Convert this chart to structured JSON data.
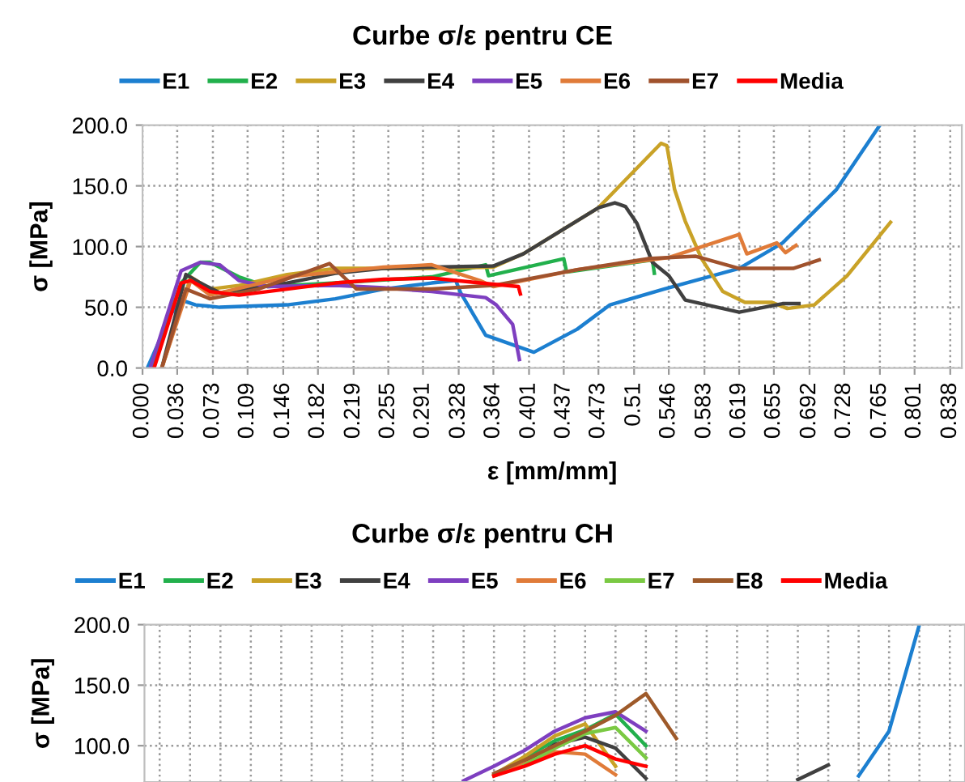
{
  "chart_data": [
    {
      "type": "line",
      "title": "Curbe σ/ε pentru CE",
      "xlabel": "ε [mm/mm]",
      "ylabel": "σ [MPa]",
      "legend": "top",
      "grid": true,
      "xlim": [
        0,
        0.85
      ],
      "ylim": [
        0,
        200
      ],
      "xticks": [
        {
          "value": 0,
          "label": "0.000"
        },
        0.036,
        0.073,
        0.109,
        0.146,
        0.182,
        0.219,
        0.255,
        0.291,
        0.328,
        0.364,
        0.401,
        0.437,
        0.473,
        0.51,
        0.546,
        0.583,
        0.619,
        0.655,
        0.692,
        0.728,
        0.765,
        0.801,
        0.838
      ],
      "yticks": [
        {
          "value": 0,
          "label": "0.0"
        },
        {
          "value": 50,
          "label": "50.0"
        },
        {
          "value": 100,
          "label": "100.0"
        },
        {
          "value": 150,
          "label": "150.0"
        },
        {
          "value": 200,
          "label": "200.0"
        }
      ],
      "series": [
        {
          "name": "E1",
          "color": "#1c7fd0",
          "x": [
            0.005,
            0.03,
            0.04,
            0.055,
            0.08,
            0.15,
            0.2,
            0.25,
            0.3,
            0.325,
            0.33,
            0.356,
            0.406,
            0.451,
            0.485,
            0.541,
            0.619,
            0.664,
            0.72,
            0.765
          ],
          "values": [
            0,
            45,
            56,
            52,
            50,
            52,
            57,
            65,
            70,
            72,
            62,
            27,
            13,
            32,
            52,
            65,
            82,
            103,
            147,
            200
          ]
        },
        {
          "name": "E2",
          "color": "#22b04c",
          "x": [
            0.01,
            0.04,
            0.06,
            0.07,
            0.1,
            0.13,
            0.2,
            0.3,
            0.356,
            0.359,
            0.437,
            0.44,
            0.529,
            0.531
          ],
          "values": [
            0,
            70,
            87,
            87,
            75,
            67,
            70,
            75,
            85,
            76,
            90,
            79,
            89,
            78
          ]
        },
        {
          "name": "E3",
          "color": "#c9a227",
          "x": [
            0.02,
            0.05,
            0.07,
            0.1,
            0.15,
            0.2,
            0.3,
            0.364,
            0.395,
            0.473,
            0.538,
            0.544,
            0.552,
            0.563,
            0.58,
            0.602,
            0.625,
            0.653,
            0.669,
            0.697,
            0.731,
            0.776
          ],
          "values": [
            0,
            75,
            65,
            68,
            77,
            82,
            82,
            83,
            94,
            132,
            185,
            183,
            147,
            121,
            90,
            63,
            54,
            54,
            49,
            52,
            76,
            120
          ]
        },
        {
          "name": "E4",
          "color": "#404040",
          "x": [
            0.02,
            0.045,
            0.06,
            0.08,
            0.15,
            0.2,
            0.25,
            0.3,
            0.364,
            0.395,
            0.473,
            0.49,
            0.501,
            0.513,
            0.529,
            0.546,
            0.563,
            0.619,
            0.664,
            0.681
          ],
          "values": [
            0,
            77,
            70,
            62,
            70,
            78,
            82,
            83,
            84,
            94,
            132,
            136,
            133,
            119,
            87,
            76,
            56,
            46,
            53,
            53
          ]
        },
        {
          "name": "E5",
          "color": "#7e3fc0",
          "x": [
            0.008,
            0.04,
            0.06,
            0.08,
            0.1,
            0.13,
            0.2,
            0.25,
            0.3,
            0.356,
            0.367,
            0.384,
            0.391
          ],
          "values": [
            0,
            80,
            87,
            85,
            72,
            67,
            68,
            66,
            63,
            58,
            52,
            36,
            7
          ]
        },
        {
          "name": "E6",
          "color": "#e07b39",
          "x": [
            0.02,
            0.05,
            0.07,
            0.15,
            0.25,
            0.3,
            0.35,
            0.364,
            0.451,
            0.546,
            0.619,
            0.627,
            0.658,
            0.667,
            0.678
          ],
          "values": [
            0,
            72,
            60,
            75,
            83,
            85,
            72,
            67,
            81,
            91,
            110,
            94,
            103,
            95,
            101
          ]
        },
        {
          "name": "E7",
          "color": "#a0522d",
          "x": [
            0.02,
            0.045,
            0.07,
            0.12,
            0.18,
            0.194,
            0.222,
            0.3,
            0.364,
            0.451,
            0.524,
            0.574,
            0.619,
            0.675,
            0.702
          ],
          "values": [
            0,
            65,
            57,
            65,
            82,
            86,
            65,
            65,
            68,
            81,
            90,
            92,
            82,
            82,
            89
          ]
        },
        {
          "name": "Media",
          "color": "#ff0000",
          "x": [
            0.012,
            0.04,
            0.05,
            0.07,
            0.1,
            0.15,
            0.2,
            0.25,
            0.3,
            0.35,
            0.39,
            0.392
          ],
          "values": [
            0,
            70,
            72,
            63,
            60,
            65,
            70,
            73,
            74,
            70,
            67,
            61
          ]
        }
      ]
    },
    {
      "type": "line",
      "title": "Curbe σ/ε pentru CH",
      "ylabel": "σ [MPa]",
      "legend": "top",
      "grid": true,
      "tick_labels": "y",
      "categories": [
        null,
        null,
        null,
        null,
        null,
        null,
        null,
        null,
        null,
        null,
        null,
        null,
        null,
        null,
        null,
        null,
        null,
        null,
        null,
        null,
        null,
        null,
        null,
        null,
        null,
        null,
        null
      ],
      "ylim": [
        70,
        200
      ],
      "yticks": [
        {
          "value": 100,
          "label": "100.0"
        },
        {
          "value": 150,
          "label": "150.0"
        },
        {
          "value": 200,
          "label": "200.0"
        }
      ],
      "series": [
        {
          "name": "E1",
          "color": "#1c7fd0",
          "values": [
            null,
            null,
            null,
            null,
            null,
            null,
            null,
            null,
            null,
            null,
            null,
            null,
            null,
            null,
            null,
            null,
            null,
            null,
            null,
            null,
            null,
            null,
            null,
            75,
            112,
            200,
            null
          ]
        },
        {
          "name": "E2",
          "color": "#22b04c",
          "values": [
            null,
            null,
            null,
            null,
            null,
            null,
            null,
            null,
            null,
            null,
            null,
            null,
            90,
            104,
            113,
            126,
            100,
            null,
            null,
            null,
            null,
            null,
            null,
            null,
            null,
            null,
            null
          ]
        },
        {
          "name": "E3",
          "color": "#c9a227",
          "values": [
            null,
            null,
            null,
            null,
            null,
            null,
            null,
            null,
            null,
            null,
            null,
            76,
            91,
            108,
            118,
            83,
            null,
            null,
            null,
            null,
            null,
            null,
            null,
            null,
            null,
            null,
            null
          ]
        },
        {
          "name": "E4",
          "color": "#404040",
          "values": [
            null,
            null,
            null,
            null,
            null,
            null,
            null,
            null,
            null,
            null,
            null,
            null,
            85,
            101,
            107,
            98,
            73,
            null,
            null,
            null,
            null,
            72,
            84,
            null,
            null,
            null,
            null
          ]
        },
        {
          "name": "E5",
          "color": "#7e3fc0",
          "values": [
            null,
            null,
            null,
            null,
            null,
            null,
            null,
            null,
            null,
            null,
            71,
            83,
            96,
            112,
            123,
            128,
            112,
            null,
            null,
            null,
            null,
            null,
            null,
            null,
            null,
            null,
            null
          ]
        },
        {
          "name": "E6",
          "color": "#e07b39",
          "values": [
            null,
            null,
            null,
            null,
            null,
            null,
            null,
            null,
            null,
            null,
            null,
            75,
            85,
            95,
            93,
            76,
            null,
            null,
            null,
            null,
            null,
            null,
            null,
            null,
            null,
            null,
            null
          ]
        },
        {
          "name": "E7",
          "color": "#7ac943",
          "values": [
            null,
            null,
            null,
            null,
            null,
            null,
            null,
            null,
            null,
            null,
            null,
            null,
            84,
            98,
            110,
            115,
            90,
            null,
            null,
            null,
            null,
            null,
            null,
            null,
            null,
            null,
            null
          ]
        },
        {
          "name": "E8",
          "color": "#9e5a2a",
          "values": [
            null,
            null,
            null,
            null,
            null,
            null,
            null,
            null,
            null,
            null,
            null,
            77,
            88,
            100,
            112,
            125,
            143,
            106,
            null,
            null,
            null,
            null,
            null,
            null,
            null,
            null,
            null
          ]
        },
        {
          "name": "Media",
          "color": "#ff0000",
          "values": [
            null,
            null,
            null,
            null,
            null,
            null,
            null,
            null,
            null,
            null,
            null,
            75,
            83,
            93,
            100,
            89,
            83,
            null,
            null,
            null,
            null,
            null,
            null,
            null,
            null,
            null,
            null
          ]
        }
      ]
    }
  ]
}
